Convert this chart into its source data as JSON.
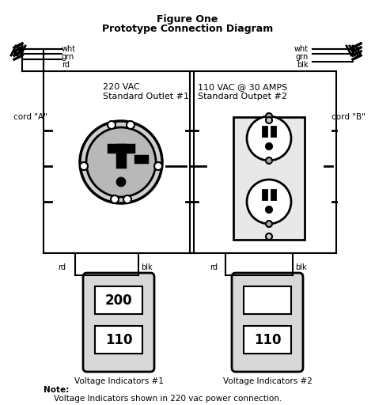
{
  "title_line1": "Figure One",
  "title_line2": "Prototype Connection Diagram",
  "outlet1_label": "220 VAC\nStandard Outlet #1",
  "outlet2_label": "110 VAC @ 30 AMPS\nStandard Outpet #2",
  "cord_a_label": "cord \"A\"",
  "cord_b_label": "cord \"B\"",
  "left_wire_labels": [
    "wht",
    "grn",
    "rd"
  ],
  "right_wire_labels": [
    "wht",
    "grn",
    "blk"
  ],
  "bottom_left_labels": [
    "rd",
    "blk"
  ],
  "bottom_right_labels": [
    "rd",
    "blk"
  ],
  "indicator1_label": "Voltage Indicators #1",
  "indicator2_label": "Voltage Indicators #2",
  "indicator1_values": [
    "200",
    "110"
  ],
  "indicator2_values": [
    "",
    "110"
  ],
  "note_text": "Note:\n    Voltage Indicators shown in 220 vac power connection.",
  "bg_color": "#ffffff",
  "line_color": "#000000",
  "figsize": [
    4.74,
    5.12
  ],
  "dpi": 100
}
